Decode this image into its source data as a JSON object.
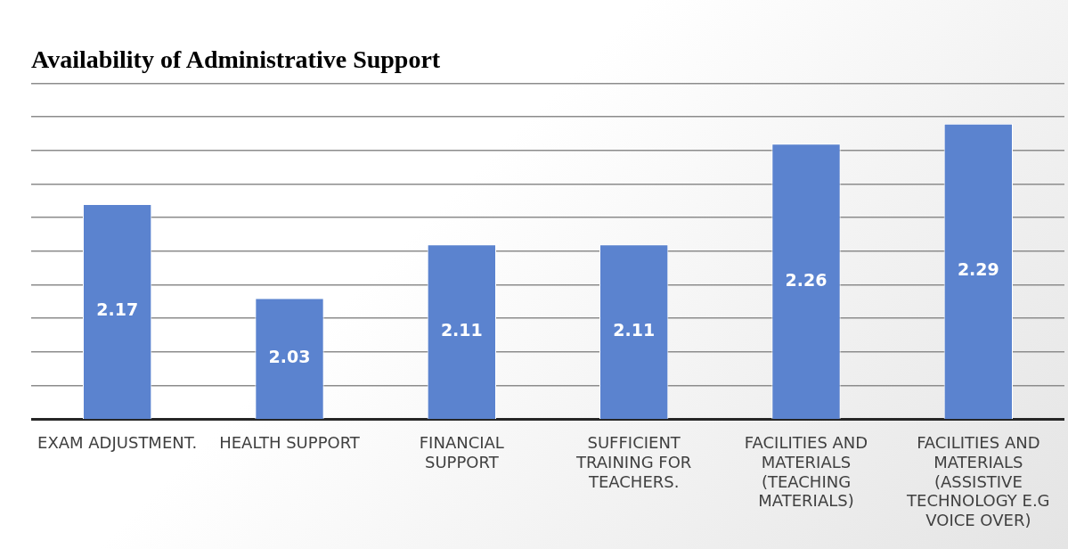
{
  "chart_data": {
    "type": "bar",
    "title": "Availability of Administrative Support",
    "categories": [
      "EXAM ADJUSTMENT.",
      "HEALTH SUPPORT",
      "FINANCIAL SUPPORT",
      "SUFFICIENT TRAINING FOR TEACHERS.",
      "FACILITIES AND MATERIALS (TEACHING MATERIALS)",
      "FACILITIES AND MATERIALS (ASSISTIVE TECHNOLOGY E.G VOICE OVER)"
    ],
    "values": [
      2.17,
      2.03,
      2.11,
      2.11,
      2.26,
      2.29
    ],
    "color": "#5b83cf",
    "ylim": [
      1.85,
      2.35
    ],
    "yticks": [
      {
        "value": 1.85,
        "label": null
      },
      {
        "value": 1.9,
        "label": null
      },
      {
        "value": 1.95,
        "label": null
      },
      {
        "value": 2.0,
        "label": null
      },
      {
        "value": 2.05,
        "label": null
      },
      {
        "value": 2.1,
        "label": null
      },
      {
        "value": 2.15,
        "label": null
      },
      {
        "value": 2.2,
        "label": null
      },
      {
        "value": 2.25,
        "label": null
      },
      {
        "value": 2.3,
        "label": null
      },
      {
        "value": 2.35,
        "label": null
      }
    ],
    "tick_labels": "x",
    "grid": "y",
    "legend": false,
    "data_labels": true
  }
}
